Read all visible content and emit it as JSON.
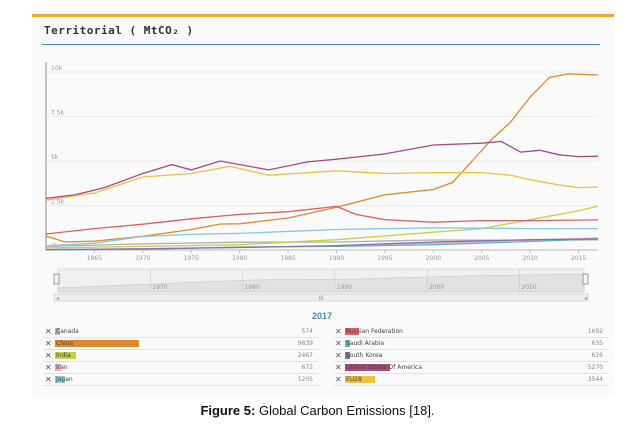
{
  "panel": {
    "title": "Territorial ( MtCO₂ )",
    "accent_color": "#f0a830",
    "rule_color": "#4a86c5"
  },
  "chart_data": {
    "type": "line",
    "title": "Territorial ( MtCO₂ )",
    "xlabel": "",
    "ylabel": "",
    "xlim": [
      1960,
      2017
    ],
    "ylim": [
      0,
      10000
    ],
    "y_ticks": [
      0,
      2500,
      5000,
      7500,
      10000
    ],
    "y_tick_labels": [
      "0k",
      "2.5k",
      "5k",
      "7.5k",
      "10k"
    ],
    "x_ticks": [
      1965,
      1970,
      1975,
      1980,
      1985,
      1990,
      1995,
      2000,
      2005,
      2010,
      2015
    ],
    "grid": true,
    "series": [
      {
        "name": "Canada",
        "color": "#b0b0b0",
        "x": [
          1960,
          1970,
          1980,
          1990,
          2000,
          2010,
          2017
        ],
        "values": [
          200,
          340,
          440,
          450,
          560,
          540,
          574
        ]
      },
      {
        "name": "China",
        "color": "#e08a30",
        "x": [
          1960,
          1962,
          1965,
          1970,
          1975,
          1978,
          1980,
          1985,
          1990,
          1995,
          2000,
          2002,
          2004,
          2006,
          2008,
          2010,
          2012,
          2014,
          2016,
          2017
        ],
        "values": [
          780,
          450,
          500,
          770,
          1150,
          1460,
          1470,
          1800,
          2400,
          3100,
          3400,
          3800,
          5000,
          6200,
          7200,
          8600,
          9700,
          9900,
          9850,
          9839
        ]
      },
      {
        "name": "India",
        "color": "#c8d040",
        "x": [
          1960,
          1970,
          1980,
          1990,
          2000,
          2005,
          2010,
          2015,
          2017
        ],
        "values": [
          120,
          200,
          300,
          580,
          1000,
          1200,
          1700,
          2200,
          2467
        ]
      },
      {
        "name": "Iran",
        "color": "#f0a0c8",
        "x": [
          1960,
          1970,
          1980,
          1990,
          2000,
          2010,
          2017
        ],
        "values": [
          30,
          80,
          150,
          230,
          380,
          560,
          672
        ]
      },
      {
        "name": "Japan",
        "color": "#88c8e0",
        "x": [
          1960,
          1965,
          1970,
          1975,
          1980,
          1990,
          2000,
          2010,
          2017
        ],
        "values": [
          230,
          380,
          760,
          880,
          930,
          1150,
          1250,
          1200,
          1205
        ]
      },
      {
        "name": "Russian Federation",
        "color": "#e06060",
        "x": [
          1960,
          1965,
          1970,
          1975,
          1980,
          1985,
          1990,
          1992,
          1995,
          2000,
          2005,
          2010,
          2017
        ],
        "values": [
          900,
          1200,
          1450,
          1750,
          2000,
          2150,
          2450,
          2000,
          1700,
          1560,
          1650,
          1650,
          1692
        ]
      },
      {
        "name": "Saudi Arabia",
        "color": "#60b8b8",
        "x": [
          1960,
          1970,
          1980,
          1990,
          2000,
          2010,
          2017
        ],
        "values": [
          10,
          40,
          170,
          200,
          300,
          480,
          635
        ]
      },
      {
        "name": "South Korea",
        "color": "#8870b0",
        "x": [
          1960,
          1970,
          1980,
          1990,
          2000,
          2010,
          2017
        ],
        "values": [
          20,
          60,
          140,
          250,
          450,
          580,
          616
        ]
      },
      {
        "name": "United States Of America",
        "color": "#b04880",
        "x": [
          1960,
          1963,
          1966,
          1970,
          1973,
          1975,
          1978,
          1980,
          1983,
          1987,
          1990,
          1995,
          2000,
          2005,
          2007,
          2009,
          2011,
          2013,
          2015,
          2017
        ],
        "values": [
          2900,
          3100,
          3500,
          4300,
          4800,
          4500,
          5000,
          4800,
          4500,
          4950,
          5100,
          5400,
          5900,
          6000,
          6100,
          5500,
          5600,
          5350,
          5250,
          5270
        ]
      },
      {
        "name": "EU28",
        "color": "#f0c040",
        "x": [
          1960,
          1965,
          1970,
          1975,
          1979,
          1983,
          1990,
          1995,
          2000,
          2005,
          2008,
          2010,
          2013,
          2015,
          2017
        ],
        "values": [
          2800,
          3200,
          4100,
          4300,
          4700,
          4200,
          4450,
          4300,
          4350,
          4350,
          4200,
          3950,
          3650,
          3500,
          3544
        ]
      }
    ]
  },
  "navigator": {
    "tick_labels": [
      "1970",
      "1980",
      "1990",
      "2000",
      "2010"
    ],
    "scroll_symbol": "III"
  },
  "legend": {
    "year": "2017",
    "remove_symbol": "✕",
    "left": [
      {
        "label": "Canada",
        "value": "574",
        "color": "#b0b0b0",
        "fraction": 0.06
      },
      {
        "label": "China",
        "value": "9839",
        "color": "#e08a30",
        "fraction": 1.0
      },
      {
        "label": "India",
        "value": "2467",
        "color": "#c8d040",
        "fraction": 0.25
      },
      {
        "label": "Iran",
        "value": "672",
        "color": "#f0a0c8",
        "fraction": 0.07
      },
      {
        "label": "Japan",
        "value": "1205",
        "color": "#88c8e0",
        "fraction": 0.12
      }
    ],
    "right": [
      {
        "label": "Russian Federation",
        "value": "1692",
        "color": "#e06060",
        "fraction": 0.17
      },
      {
        "label": "Saudi Arabia",
        "value": "635",
        "color": "#60b8b8",
        "fraction": 0.065
      },
      {
        "label": "South Korea",
        "value": "616",
        "color": "#8870b0",
        "fraction": 0.063
      },
      {
        "label": "United States Of America",
        "value": "5270",
        "color": "#b04880",
        "fraction": 0.54
      },
      {
        "label": "EU28",
        "value": "3544",
        "color": "#f0c040",
        "fraction": 0.36
      }
    ]
  },
  "caption": {
    "label": "Figure 5:",
    "text": " Global Carbon Emissions [18]."
  }
}
